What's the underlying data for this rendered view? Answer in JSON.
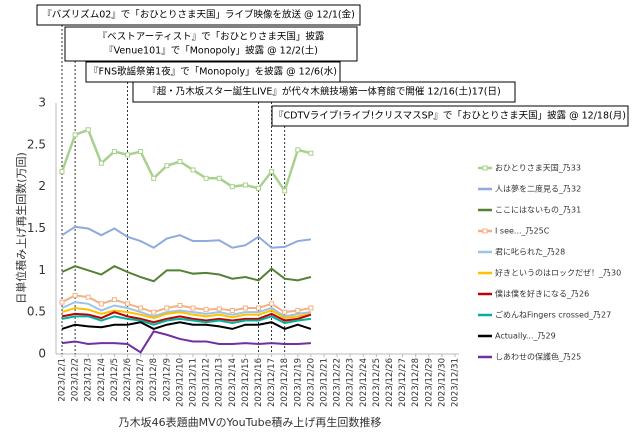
{
  "chart_data": {
    "type": "line",
    "title": "乃木坂46表題曲MVのYouTube積み上げ再生回数推移",
    "ylabel": "日単位積み上げ再生回数(万回)",
    "ylim": [
      0,
      3
    ],
    "yticks": [
      0,
      0.5,
      1,
      1.5,
      2,
      2.5,
      3
    ],
    "grid": false,
    "legend": "right",
    "categories": [
      "2023/12/1",
      "2023/12/2",
      "2023/12/3",
      "2023/12/4",
      "2023/12/5",
      "2023/12/6",
      "2023/12/7",
      "2023/12/8",
      "2023/12/9",
      "2023/12/10",
      "2023/12/11",
      "2023/12/12",
      "2023/12/13",
      "2023/12/14",
      "2023/12/15",
      "2023/12/16",
      "2023/12/17",
      "2023/12/18",
      "2023/12/19",
      "2023/12/20",
      "2023/12/21",
      "2023/12/22",
      "2023/12/23",
      "2023/12/24",
      "2023/12/25",
      "2023/12/26",
      "2023/12/27",
      "2023/12/28",
      "2023/12/29",
      "2023/12/30",
      "2023/12/31"
    ],
    "series": [
      {
        "name": "おひとりさま天国_乃33",
        "color": "#a9d18e",
        "values": [
          2.18,
          2.62,
          2.68,
          2.28,
          2.42,
          2.38,
          2.42,
          2.1,
          2.25,
          2.3,
          2.2,
          2.1,
          2.1,
          2.0,
          2.02,
          1.98,
          2.18,
          1.95,
          2.44,
          2.4,
          null,
          null,
          null,
          null,
          null,
          null,
          null,
          null,
          null,
          null,
          null
        ]
      },
      {
        "name": "人は夢を二度見る_乃32",
        "color": "#8faadc",
        "values": [
          1.42,
          1.52,
          1.5,
          1.42,
          1.5,
          1.4,
          1.35,
          1.27,
          1.38,
          1.42,
          1.35,
          1.35,
          1.36,
          1.27,
          1.3,
          1.4,
          1.27,
          1.28,
          1.35,
          1.37,
          null,
          null,
          null,
          null,
          null,
          null,
          null,
          null,
          null,
          null,
          null
        ]
      },
      {
        "name": "ここにはないもの_乃31",
        "color": "#548235",
        "values": [
          0.98,
          1.05,
          1.0,
          0.95,
          1.05,
          0.98,
          0.92,
          0.87,
          1.0,
          1.0,
          0.96,
          0.97,
          0.95,
          0.9,
          0.92,
          0.88,
          1.02,
          0.9,
          0.88,
          0.92,
          null,
          null,
          null,
          null,
          null,
          null,
          null,
          null,
          null,
          null,
          null
        ]
      },
      {
        "name": "I see..._乃25C",
        "color": "#f4b183",
        "values": [
          0.62,
          0.7,
          0.68,
          0.6,
          0.65,
          0.6,
          0.55,
          0.5,
          0.55,
          0.58,
          0.55,
          0.53,
          0.54,
          0.52,
          0.55,
          0.55,
          0.6,
          0.5,
          0.52,
          0.55,
          null,
          null,
          null,
          null,
          null,
          null,
          null,
          null,
          null,
          null,
          null
        ]
      },
      {
        "name": "君に叱られた_乃28",
        "color": "#9dc3e6",
        "values": [
          0.55,
          0.62,
          0.6,
          0.52,
          0.58,
          0.55,
          0.5,
          0.45,
          0.5,
          0.52,
          0.5,
          0.48,
          0.5,
          0.47,
          0.5,
          0.5,
          0.55,
          0.45,
          0.48,
          0.5,
          null,
          null,
          null,
          null,
          null,
          null,
          null,
          null,
          null,
          null,
          null
        ]
      },
      {
        "name": "好きというのはロックだぜ！_乃30",
        "color": "#ffc000",
        "values": [
          0.5,
          0.55,
          0.53,
          0.48,
          0.52,
          0.5,
          0.47,
          0.43,
          0.48,
          0.5,
          0.47,
          0.45,
          0.47,
          0.44,
          0.47,
          0.47,
          0.52,
          0.43,
          0.45,
          0.48,
          null,
          null,
          null,
          null,
          null,
          null,
          null,
          null,
          null,
          null,
          null
        ]
      },
      {
        "name": "僕は僕を好きになる_乃26",
        "color": "#c00000",
        "values": [
          0.45,
          0.48,
          0.47,
          0.43,
          0.5,
          0.45,
          0.42,
          0.38,
          0.42,
          0.45,
          0.42,
          0.4,
          0.42,
          0.4,
          0.42,
          0.42,
          0.48,
          0.4,
          0.42,
          0.47,
          null,
          null,
          null,
          null,
          null,
          null,
          null,
          null,
          null,
          null,
          null
        ]
      },
      {
        "name": "ごめんねFingers crossed_乃27",
        "color": "#00b0a0",
        "values": [
          0.42,
          0.45,
          0.45,
          0.4,
          0.45,
          0.42,
          0.4,
          0.35,
          0.4,
          0.42,
          0.4,
          0.38,
          0.4,
          0.37,
          0.4,
          0.4,
          0.45,
          0.37,
          0.4,
          0.42,
          null,
          null,
          null,
          null,
          null,
          null,
          null,
          null,
          null,
          null,
          null
        ]
      },
      {
        "name": "Actually..._乃29",
        "color": "#000000",
        "values": [
          0.3,
          0.35,
          0.33,
          0.32,
          0.35,
          0.35,
          0.38,
          0.3,
          0.35,
          0.38,
          0.35,
          0.35,
          0.33,
          0.3,
          0.35,
          0.35,
          0.38,
          0.3,
          0.35,
          0.3,
          null,
          null,
          null,
          null,
          null,
          null,
          null,
          null,
          null,
          null,
          null
        ]
      },
      {
        "name": "しあわせの保護色_乃25",
        "color": "#7030a0",
        "values": [
          0.13,
          0.15,
          0.12,
          0.13,
          0.13,
          0.12,
          0.02,
          0.27,
          0.23,
          0.18,
          0.15,
          0.15,
          0.12,
          0.12,
          0.13,
          0.12,
          0.13,
          0.12,
          0.12,
          0.13,
          null,
          null,
          null,
          null,
          null,
          null,
          null,
          null,
          null,
          null,
          null
        ]
      }
    ],
    "annotations": [
      [
        "『バズリズム02』で「おひとりさま天国」ライブ映像を放送 @ 12/1(金)"
      ],
      [
        "『ベストアーティスト』で「おひとりさま天国」披露",
        "『Venue101』で「Monopoly」披露 @ 12/2(土)"
      ],
      [
        "『FNS歌謡祭第1夜』で「Monopoly」を披露 @ 12/6(水)"
      ],
      [
        "『超・乃木坂スター誕生LIVE』が代々木競技場第一体育館で開催 12/16(土)17(日)"
      ],
      [
        "『CDTVライブ!ライブ!クリスマスSP』で「おひとりさま天国」披露 @ 12/18(月)"
      ]
    ]
  }
}
